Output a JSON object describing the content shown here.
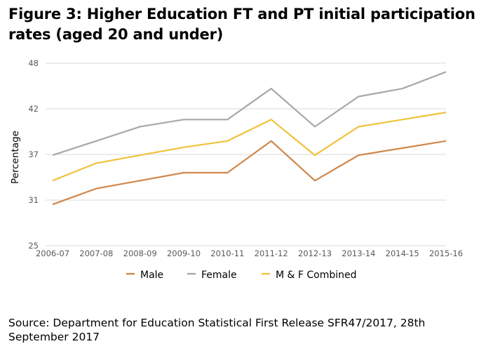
{
  "title": "Figure 3: Higher Education FT and PT initial participation rates (aged 20 and under)",
  "source": "Source: Department for Education Statistical First Release SFR47/2017, 28th September 2017",
  "chart_data": {
    "type": "line",
    "title": "Figure 3: Higher Education FT and PT initial participation rates (aged 20 and under)",
    "xlabel": "",
    "ylabel": "Percentage",
    "categories": [
      "2006-07",
      "2007-08",
      "2008-09",
      "2009-10",
      "2010-11",
      "2011-12",
      "2012-13",
      "2013-14",
      "2014-15",
      "2015-16"
    ],
    "yticks": [
      "25",
      "31",
      "37",
      "42",
      "48"
    ],
    "ylim": [
      25,
      48
    ],
    "grid": true,
    "legend_position": "bottom",
    "series": [
      {
        "name": "Male",
        "color": "#d0874a",
        "values": [
          30.2,
          32.2,
          33.2,
          34.2,
          34.2,
          38.2,
          33.2,
          36.4,
          37.3,
          38.2
        ]
      },
      {
        "name": "Female",
        "color": "#a8a8a8",
        "values": [
          36.4,
          38.2,
          40.0,
          40.9,
          40.9,
          44.8,
          40.0,
          43.8,
          44.8,
          46.9
        ]
      },
      {
        "name": "M & F Combined",
        "color": "#f0c23a",
        "values": [
          33.2,
          35.4,
          36.4,
          37.4,
          38.2,
          40.9,
          36.4,
          40.0,
          40.9,
          41.8
        ]
      }
    ]
  }
}
